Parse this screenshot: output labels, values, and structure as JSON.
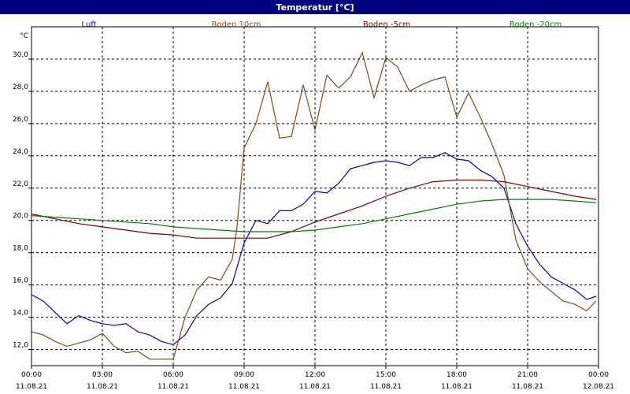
{
  "window": {
    "title": "Temperatur [°C]"
  },
  "chart_data": {
    "type": "line",
    "title": "Temperatur [°C]",
    "ylabel": "°C",
    "ylim": [
      11,
      32
    ],
    "yticks": [
      "12,0",
      "14,0",
      "16,0",
      "18,0",
      "20,0",
      "22,0",
      "24,0",
      "26,0",
      "28,0",
      "30,0"
    ],
    "ytick_values": [
      12,
      14,
      16,
      18,
      20,
      22,
      24,
      26,
      28,
      30
    ],
    "xlim": [
      0,
      24
    ],
    "xticks": [
      {
        "time": "00:00",
        "date": "11.08.21",
        "hour": 0
      },
      {
        "time": "03:00",
        "date": "11.08.21",
        "hour": 3
      },
      {
        "time": "06:00",
        "date": "11.08.21",
        "hour": 6
      },
      {
        "time": "09:00",
        "date": "11.08.21",
        "hour": 9
      },
      {
        "time": "12:00",
        "date": "11.08.21",
        "hour": 12
      },
      {
        "time": "15:00",
        "date": "11.08.21",
        "hour": 15
      },
      {
        "time": "18:00",
        "date": "11.08.21",
        "hour": 18
      },
      {
        "time": "21:00",
        "date": "11.08.21",
        "hour": 21
      },
      {
        "time": "00:00",
        "date": "12.08.21",
        "hour": 24
      }
    ],
    "grid": true,
    "legend": "top",
    "series": [
      {
        "name": "Luft",
        "color": "#0000cc",
        "x": [
          0,
          0.5,
          1,
          1.5,
          2,
          2.5,
          3,
          3.5,
          4,
          4.5,
          5,
          5.5,
          6,
          6.5,
          7,
          7.5,
          8,
          8.5,
          9,
          9.5,
          10,
          10.5,
          11,
          11.5,
          12,
          12.5,
          13,
          13.5,
          14,
          14.5,
          15,
          15.5,
          16,
          16.5,
          17,
          17.5,
          18,
          18.5,
          19,
          19.5,
          20,
          20.5,
          21,
          21.5,
          22,
          22.5,
          23,
          23.5,
          23.9
        ],
        "y": [
          15.4,
          15.0,
          14.3,
          13.6,
          14.1,
          13.8,
          13.6,
          13.5,
          13.6,
          13.1,
          12.9,
          12.5,
          12.3,
          12.9,
          14.1,
          14.8,
          15.2,
          16.1,
          18.6,
          20.0,
          19.8,
          20.6,
          20.6,
          21.0,
          21.8,
          21.7,
          22.3,
          23.2,
          23.4,
          23.6,
          23.7,
          23.6,
          23.4,
          23.9,
          23.9,
          24.2,
          23.8,
          23.7,
          23.1,
          22.7,
          22.0,
          19.8,
          18.4,
          17.3,
          16.5,
          16.1,
          15.7,
          15.1,
          15.3
        ]
      },
      {
        "name": "Boden 10cm",
        "color": "#8b4513",
        "x": [
          0,
          0.5,
          1,
          1.5,
          2,
          2.5,
          3,
          3.5,
          4,
          4.5,
          5,
          5.5,
          6,
          6.5,
          7,
          7.5,
          8,
          8.5,
          8.7,
          9,
          9.5,
          10,
          10.5,
          11,
          11.5,
          12,
          12.5,
          13,
          13.5,
          14,
          14.5,
          15,
          15.5,
          16,
          16.5,
          17,
          17.5,
          18,
          18.5,
          19,
          19.5,
          20,
          20.5,
          21,
          21.5,
          22,
          22.5,
          23,
          23.5,
          23.9
        ],
        "y": [
          13.1,
          12.9,
          12.5,
          12.2,
          12.4,
          12.6,
          13.0,
          12.2,
          11.8,
          11.9,
          11.4,
          11.4,
          11.4,
          14.0,
          15.7,
          16.5,
          16.3,
          17.6,
          19.6,
          24.5,
          26.0,
          28.6,
          25.1,
          25.2,
          28.4,
          25.6,
          29.0,
          28.2,
          28.9,
          30.4,
          27.6,
          30.1,
          29.5,
          28.0,
          28.4,
          28.7,
          28.9,
          26.4,
          27.9,
          26.4,
          24.7,
          22.8,
          18.8,
          17.0,
          16.2,
          15.6,
          15.0,
          14.8,
          14.4,
          15.0
        ]
      },
      {
        "name": "Boden -5cm",
        "color": "#800000",
        "x": [
          0,
          1,
          2,
          3,
          4,
          5,
          6,
          7,
          8,
          9,
          10,
          11,
          12,
          13,
          14,
          15,
          16,
          17,
          18,
          19,
          20,
          21,
          22,
          23,
          23.9
        ],
        "y": [
          20.4,
          20.1,
          19.8,
          19.6,
          19.4,
          19.2,
          19.1,
          18.9,
          18.9,
          18.9,
          18.9,
          19.3,
          19.9,
          20.4,
          20.9,
          21.5,
          22.0,
          22.4,
          22.5,
          22.5,
          22.4,
          22.1,
          21.8,
          21.5,
          21.3
        ]
      },
      {
        "name": "Boden -20cm",
        "color": "#008000",
        "x": [
          0,
          1,
          2,
          3,
          4,
          5,
          6,
          7,
          8,
          9,
          10,
          11,
          12,
          13,
          14,
          15,
          16,
          17,
          18,
          19,
          20,
          21,
          22,
          23,
          23.9
        ],
        "y": [
          20.3,
          20.2,
          20.1,
          20.0,
          19.9,
          19.8,
          19.6,
          19.5,
          19.4,
          19.3,
          19.3,
          19.3,
          19.4,
          19.6,
          19.8,
          20.1,
          20.4,
          20.7,
          21.0,
          21.2,
          21.3,
          21.3,
          21.3,
          21.2,
          21.1
        ]
      }
    ]
  }
}
